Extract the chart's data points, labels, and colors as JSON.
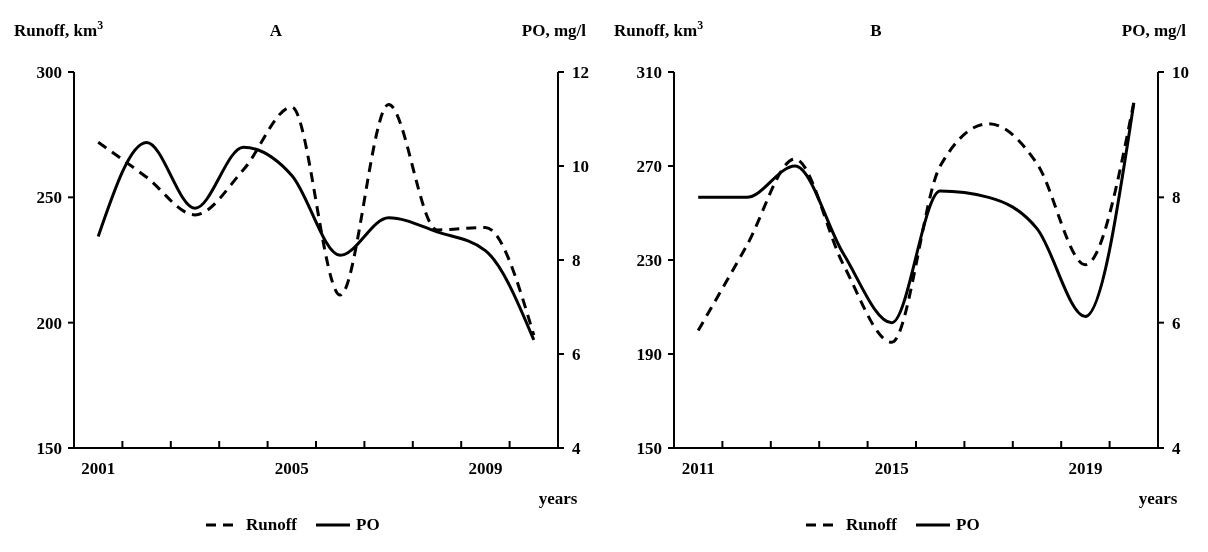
{
  "chart_data": [
    {
      "type": "line",
      "title": "A",
      "ylabel": "Runoff, km$^{3}$",
      "y2label": "PO, mg/l",
      "xlabel": "years",
      "legend": "bottom",
      "categories": [
        "2001",
        null,
        null,
        null,
        "2005",
        null,
        null,
        null,
        "2009",
        null
      ],
      "series": [
        {
          "name": "Runoff",
          "color": "#000000",
          "line_style": "dashed",
          "values": [
            272,
            258,
            243,
            261,
            286,
            211,
            287,
            237,
            238,
            195
          ]
        },
        {
          "name": "PO",
          "color": "#000000",
          "line_style": "solid",
          "axis": "y2",
          "values": [
            8.5,
            10.5,
            9.1,
            10.4,
            9.8,
            8.1,
            8.9,
            8.6,
            8.2,
            6.3
          ]
        }
      ],
      "ylim": [
        150,
        300
      ],
      "yticks": [
        150,
        200,
        250,
        300
      ],
      "y2lim": [
        4,
        12
      ],
      "y2ticks": [
        4,
        6,
        8,
        10,
        12
      ]
    },
    {
      "type": "line",
      "title": "B",
      "ylabel": "Runoff, km$^{3}$",
      "y2label": "PO, mg/l",
      "xlabel": "years",
      "legend": "bottom",
      "categories": [
        "2011",
        null,
        null,
        null,
        "2015",
        null,
        null,
        null,
        "2019",
        null
      ],
      "series": [
        {
          "name": "Runoff",
          "color": "#000000",
          "line_style": "dashed",
          "values": [
            200,
            236,
            273,
            228,
            195,
            270,
            288,
            271,
            228,
            297
          ]
        },
        {
          "name": "PO",
          "color": "#000000",
          "line_style": "solid",
          "axis": "y2",
          "values": [
            8.0,
            8.0,
            8.5,
            7.1,
            6.0,
            8.1,
            8.0,
            7.5,
            6.1,
            9.5
          ]
        }
      ],
      "ylim": [
        150,
        310
      ],
      "yticks": [
        150,
        190,
        230,
        270,
        310
      ],
      "y2lim": [
        4,
        10
      ],
      "y2ticks": [
        4,
        6,
        8,
        10
      ]
    }
  ]
}
